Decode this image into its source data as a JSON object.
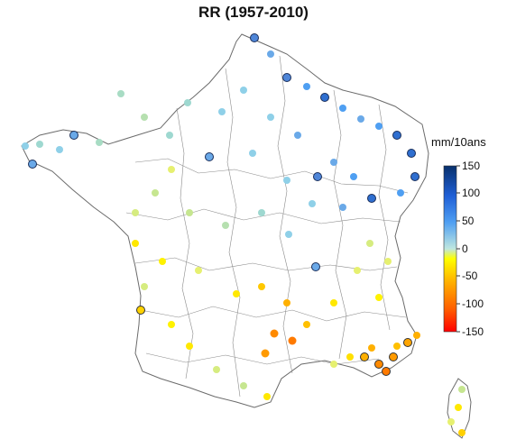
{
  "title": "RR (1957-2010)",
  "legend": {
    "unit": "mm/10ans",
    "ticks": [
      "150",
      "100",
      "50",
      "0",
      "-50",
      "-100",
      "-150"
    ],
    "values": [
      150,
      100,
      50,
      0,
      -50,
      -100,
      -150
    ],
    "colors": [
      "#08306b",
      "#1f5fd6",
      "#4f9ff2",
      "#8fd0e8",
      "#ffff00",
      "#ffa500",
      "#ff3000",
      "#ff0000"
    ]
  },
  "map": {
    "region": "France",
    "insets": [
      "Corsica"
    ]
  }
}
